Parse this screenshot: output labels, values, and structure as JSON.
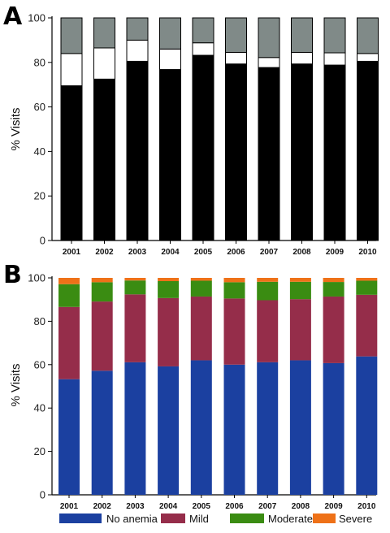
{
  "chart_data": [
    {
      "type": "bar",
      "stacked": true,
      "panel_label": "A",
      "ylabel": "% Visits",
      "ylim": [
        0,
        100
      ],
      "yticks": [
        0,
        20,
        40,
        60,
        80,
        100
      ],
      "categories": [
        "2001",
        "2002",
        "2003",
        "2004",
        "2005",
        "2006",
        "2007",
        "2008",
        "2009",
        "2010"
      ],
      "colors": [
        "#000000",
        "#ffffff",
        "#808a88"
      ],
      "series": [
        {
          "values": [
            69.5,
            72.5,
            80.5,
            76.8,
            83.2,
            79.3,
            77.7,
            79.3,
            78.8,
            80.5
          ]
        },
        {
          "values": [
            14.5,
            14.0,
            9.5,
            9.2,
            5.6,
            5.2,
            4.5,
            5.2,
            5.5,
            3.5
          ]
        },
        {
          "values": [
            16.0,
            13.5,
            10.0,
            14.0,
            11.2,
            15.5,
            17.8,
            15.5,
            15.7,
            16.0
          ]
        }
      ],
      "legend": "none",
      "grid": false
    },
    {
      "type": "bar",
      "stacked": true,
      "panel_label": "B",
      "ylabel": "% Visits",
      "ylim": [
        0,
        100
      ],
      "yticks": [
        0,
        20,
        40,
        60,
        80,
        100
      ],
      "categories": [
        "2001",
        "2002",
        "2003",
        "2004",
        "2005",
        "2006",
        "2007",
        "2008",
        "2009",
        "2010"
      ],
      "series": [
        {
          "name": "No anemia",
          "color": "#1b40a0",
          "values": [
            53.3,
            57.2,
            61.1,
            59.2,
            62.0,
            60.0,
            61.1,
            62.0,
            60.7,
            63.8
          ]
        },
        {
          "name": "Mild",
          "color": "#952d4a",
          "values": [
            33.3,
            31.9,
            31.3,
            31.5,
            29.4,
            30.5,
            28.6,
            28.2,
            30.7,
            28.4
          ]
        },
        {
          "name": "Moderate",
          "color": "#3a8c12",
          "values": [
            10.5,
            8.9,
            6.4,
            7.8,
            7.3,
            7.5,
            8.5,
            8.0,
            6.7,
            6.5
          ]
        },
        {
          "name": "Severe",
          "color": "#ee7118",
          "values": [
            2.9,
            2.0,
            1.2,
            1.5,
            1.3,
            2.0,
            1.8,
            1.8,
            1.9,
            1.3
          ]
        }
      ],
      "legend": "bottom",
      "grid": false
    }
  ]
}
